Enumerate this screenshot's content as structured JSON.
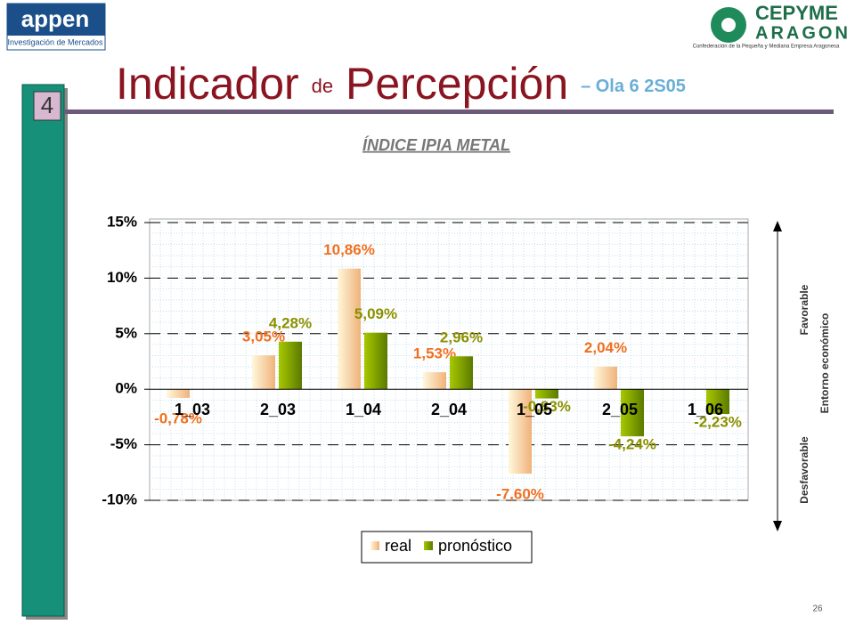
{
  "slide": {
    "logo_left": "appen",
    "logo_left_sub": "Investigación de Mercados",
    "logo_right": "CEPYME",
    "logo_right_2": "ARAGON",
    "logo_right_sub": "Confederación de la Pequeña y Mediana Empresa Aragonesa",
    "title_1": "Indicador",
    "title_2": "de",
    "title_3": "Percepción",
    "title_4": "– Ola 6 2S05",
    "section": "4",
    "page": "26",
    "side_top": "Favorable",
    "side_bottom": "Desfavorable",
    "side_axis": "Entorno económico"
  },
  "chart_data": {
    "type": "bar",
    "title": "ÍNDICE IPIA METAL",
    "categories": [
      "1_03",
      "2_03",
      "1_04",
      "2_04",
      "1_05",
      "2_05",
      "1_06"
    ],
    "series": [
      {
        "name": "real",
        "color": "#f5c99a",
        "values": [
          -0.78,
          3.05,
          10.86,
          1.53,
          -7.6,
          2.04,
          null
        ],
        "value_labels": [
          "-0,78%",
          "3,05%",
          "10,86%",
          "1,53%",
          "-7,60%",
          "2,04%",
          null
        ],
        "label_color": "#f07020"
      },
      {
        "name": "pronóstico",
        "color": "#7fa300",
        "values": [
          null,
          4.28,
          5.09,
          2.96,
          -0.83,
          -4.24,
          -2.23
        ],
        "value_labels": [
          null,
          "4,28%",
          "5,09%",
          "2,96%",
          "-0,83%",
          "-4,24%",
          "-2,23%"
        ],
        "label_color": "#8a9000"
      }
    ],
    "ylim": [
      -10,
      15
    ],
    "yticks": [
      {
        "value": -10,
        "label": "-10%"
      },
      {
        "value": -5,
        "label": "-5%"
      },
      {
        "value": 0,
        "label": "0%"
      },
      {
        "value": 5,
        "label": "5%"
      },
      {
        "value": 10,
        "label": "10%"
      },
      {
        "value": 15,
        "label": "15%"
      }
    ],
    "grid": true,
    "legend": "bottom"
  }
}
